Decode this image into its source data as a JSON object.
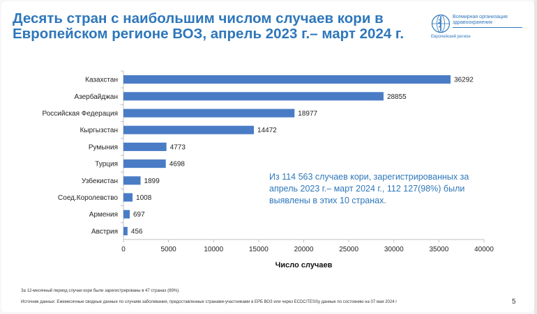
{
  "header": {
    "title": "Десять стран с наибольшим числом случаев кори в Европейском регионе ВОЗ, апрель 2023 г.– март 2024 г.",
    "logo_name": "Всемирная организация здравоохранения",
    "logo_region": "Европейский регион",
    "logo_icon": "who-emblem-icon"
  },
  "chart_data": {
    "type": "bar",
    "orientation": "horizontal",
    "categories": [
      "Казахстан",
      "Азербайджан",
      "Российская Федерация",
      "Кыргызстан",
      "Румыния",
      "Турция",
      "Узбекистан",
      "Соед.Королевство",
      "Армения",
      "Австрия"
    ],
    "values": [
      36292,
      28855,
      18977,
      14472,
      4773,
      4698,
      1899,
      1008,
      697,
      456
    ],
    "title": "",
    "xlabel": "Число случаев",
    "ylabel": "",
    "xlim": [
      0,
      40000
    ],
    "xticks": [
      0,
      5000,
      10000,
      15000,
      20000,
      25000,
      30000,
      35000,
      40000
    ],
    "grid": false,
    "bar_color": "#4a7cc6"
  },
  "callout": {
    "text": "Из 114 563 случаев кори, зарегистрированных за апрель 2023 г.– март 2024 г., 112 127(98%) были выявлены в этих 10 странах."
  },
  "footer": {
    "note": "За 12-месячный период случаи кори были зарегистрированы в 47 странах (89%).",
    "source": "Источник данных: Ежемесячные сводные данные по случаям заболевания, предоставленные странами-участниками в ЕРБ ВОЗ или через ECDC/TESSy данные по состоянию на 07 мая 2024  г",
    "page_number": "5"
  }
}
